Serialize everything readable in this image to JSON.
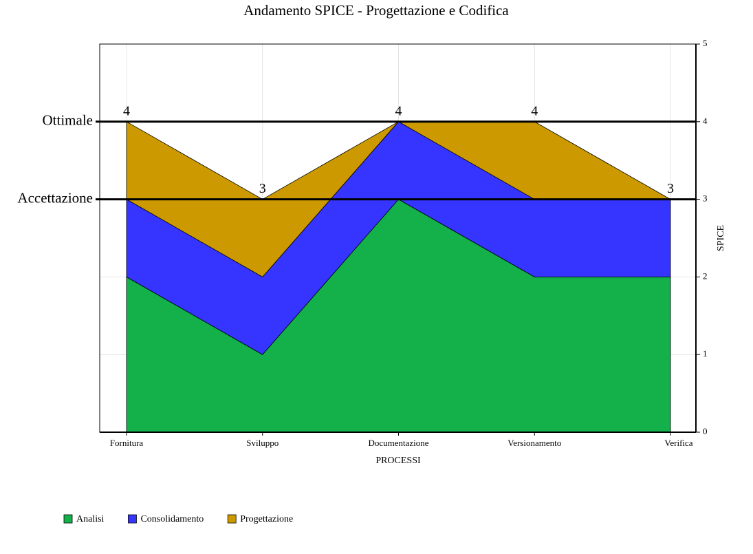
{
  "chart_data": {
    "type": "stacked_area",
    "title": "Andamento SPICE - Progettazione e Codifica",
    "x_label": "PROCESSI",
    "y_label": "SPICE",
    "categories": [
      "Fornitura",
      "Sviluppo",
      "Documentazione",
      "Versionamento",
      "Verifica"
    ],
    "series": [
      {
        "name": "Analisi",
        "color": "#14b04a",
        "values": [
          2,
          1,
          3,
          2,
          2
        ]
      },
      {
        "name": "Consolidamento",
        "color": "#3535ff",
        "values": [
          1,
          1,
          1,
          1,
          1
        ]
      },
      {
        "name": "Progettazione",
        "color": "#cc9900",
        "values": [
          1,
          1,
          0,
          1,
          0
        ]
      }
    ],
    "totals": [
      4,
      3,
      4,
      4,
      3
    ],
    "reference_lines": [
      {
        "label": "Ottimale",
        "value": 4
      },
      {
        "label": "Accettazione",
        "value": 3
      }
    ],
    "ylim": [
      0,
      5
    ],
    "yticks": [
      0,
      1,
      2,
      3,
      4,
      5
    ],
    "grid": true,
    "legend": "bottom-left"
  }
}
